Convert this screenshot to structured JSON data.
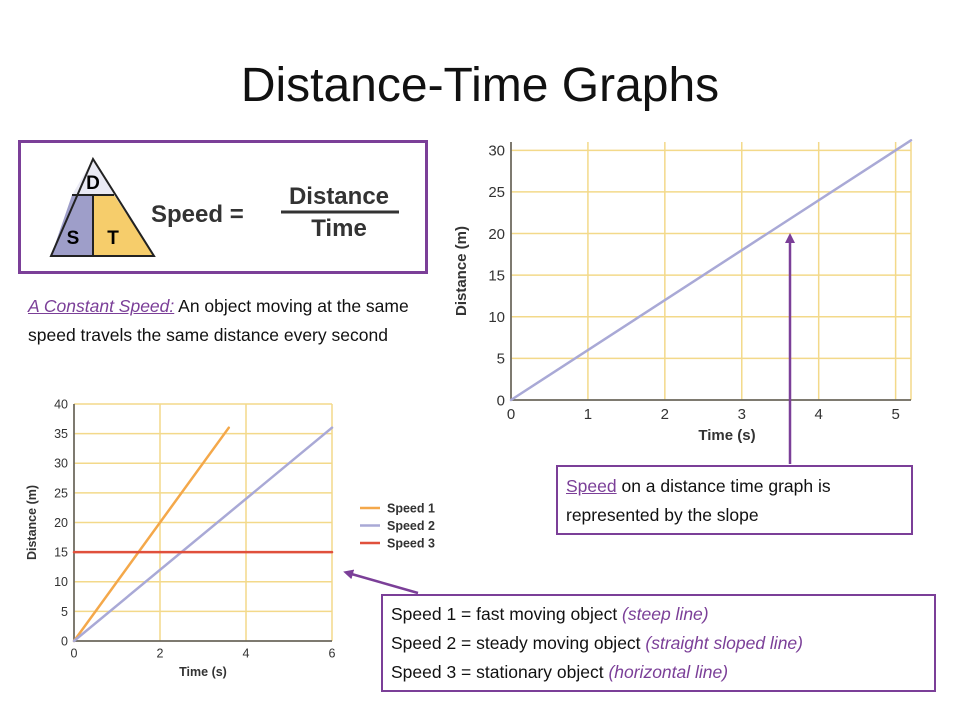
{
  "slide": {
    "title": "Distance-Time Graphs"
  },
  "formula": {
    "triangle": {
      "top": "D",
      "left": "S",
      "right": "T"
    },
    "lhs": "Speed =",
    "numerator": "Distance",
    "denominator": "Time",
    "colors": {
      "top": "#eaeaf4",
      "left": "#9e9ec9",
      "right": "#f6cd6b",
      "outline": "#222222"
    }
  },
  "constant_speed": {
    "lead": "A Constant Speed:",
    "text": " An object moving at the same speed travels the same distance every second"
  },
  "note_slope": {
    "highlight": "Speed",
    "text": " on a distance time graph is represented by the slope"
  },
  "note_speeds": {
    "lines": [
      {
        "text": "Speed 1 = fast moving object ",
        "emphasis": "(steep line)"
      },
      {
        "text": "Speed 2 = steady moving object ",
        "emphasis": "(straight sloped line)"
      },
      {
        "text": "Speed 3 = stationary object ",
        "emphasis": "(horizontal line)"
      }
    ]
  },
  "colors": {
    "accent": "#7b3f98",
    "grid": "#f3d98a",
    "axis": "#555555"
  },
  "chart_data": [
    {
      "type": "line",
      "xlabel": "Time (s)",
      "ylabel": "Distance (m)",
      "xlim": [
        0,
        5.2
      ],
      "ylim": [
        0,
        31
      ],
      "xticks": [
        0,
        1,
        2,
        3,
        4,
        5
      ],
      "yticks": [
        0,
        5,
        10,
        15,
        20,
        25,
        30
      ],
      "grid": true,
      "series": [
        {
          "color": "#a9a9d6",
          "x": [
            0,
            5.2
          ],
          "y": [
            0,
            31.2
          ]
        }
      ]
    },
    {
      "type": "line",
      "xlabel": "Time (s)",
      "ylabel": "Distance (m)",
      "xlim": [
        0,
        6
      ],
      "ylim": [
        0,
        40
      ],
      "xticks": [
        0,
        2,
        4,
        6
      ],
      "yticks": [
        0,
        5,
        10,
        15,
        20,
        25,
        30,
        35,
        40
      ],
      "grid": true,
      "legend": "right",
      "series": [
        {
          "name": "Speed 1",
          "color": "#f4a84a",
          "x": [
            0,
            3.6
          ],
          "y": [
            0,
            36
          ]
        },
        {
          "name": "Speed 2",
          "color": "#a9a9d6",
          "x": [
            0,
            6
          ],
          "y": [
            0,
            36
          ]
        },
        {
          "name": "Speed 3",
          "color": "#e0503c",
          "x": [
            0,
            6
          ],
          "y": [
            15,
            15
          ]
        }
      ]
    }
  ]
}
